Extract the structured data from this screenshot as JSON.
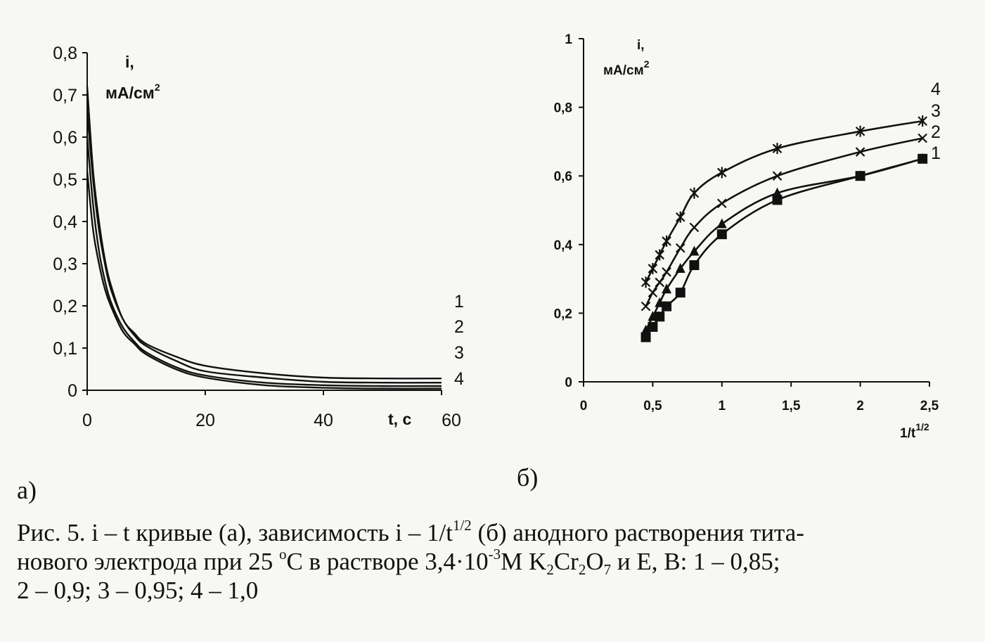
{
  "chart_data": [
    {
      "type": "line",
      "panel_label": "а)",
      "ylabel_line1": "i,",
      "ylabel_line2": "мА/см",
      "ylabel_sup": "2",
      "xlabel": "t, c",
      "xlim": [
        0,
        60
      ],
      "ylim": [
        0,
        0.8
      ],
      "x_ticks": [
        0,
        20,
        40,
        60
      ],
      "x_tick_labels": [
        "0",
        "20",
        "40",
        "60"
      ],
      "y_ticks": [
        0,
        0.1,
        0.2,
        0.3,
        0.4,
        0.5,
        0.6,
        0.7,
        0.8
      ],
      "y_tick_labels": [
        "0",
        "0,1",
        "0,2",
        "0,3",
        "0,4",
        "0,5",
        "0,6",
        "0,7",
        "0,8"
      ],
      "grid": false,
      "series": [
        {
          "name": "1",
          "x": [
            0,
            1,
            2,
            3,
            4,
            6,
            8,
            10,
            15,
            20,
            30,
            40,
            50,
            60
          ],
          "y": [
            0.52,
            0.38,
            0.3,
            0.24,
            0.2,
            0.14,
            0.11,
            0.085,
            0.05,
            0.03,
            0.012,
            0.006,
            0.004,
            0.004
          ]
        },
        {
          "name": "2",
          "x": [
            0,
            1,
            2,
            3,
            4,
            6,
            8,
            10,
            15,
            20,
            30,
            40,
            50,
            60
          ],
          "y": [
            0.6,
            0.44,
            0.33,
            0.26,
            0.21,
            0.15,
            0.115,
            0.09,
            0.055,
            0.035,
            0.018,
            0.012,
            0.01,
            0.01
          ]
        },
        {
          "name": "3",
          "x": [
            0,
            1,
            2,
            3,
            4,
            6,
            8,
            10,
            15,
            20,
            30,
            40,
            50,
            60
          ],
          "y": [
            0.66,
            0.5,
            0.38,
            0.3,
            0.24,
            0.17,
            0.13,
            0.105,
            0.07,
            0.045,
            0.03,
            0.02,
            0.018,
            0.018
          ]
        },
        {
          "name": "4",
          "x": [
            0,
            1,
            2,
            3,
            4,
            6,
            8,
            10,
            15,
            20,
            30,
            40,
            50,
            60
          ],
          "y": [
            0.72,
            0.52,
            0.4,
            0.31,
            0.25,
            0.17,
            0.135,
            0.11,
            0.08,
            0.058,
            0.04,
            0.03,
            0.028,
            0.028
          ]
        }
      ]
    },
    {
      "type": "line",
      "panel_label": "б)",
      "ylabel_line1": "i,",
      "ylabel_line2": "мА/см",
      "ylabel_sup": "2",
      "xlabel": "1/t",
      "xlabel_sup": "1/2",
      "xlim": [
        0,
        2.5
      ],
      "ylim": [
        0,
        1
      ],
      "x_ticks": [
        0,
        0.5,
        1,
        1.5,
        2,
        2.5
      ],
      "x_tick_labels": [
        "0",
        "0,5",
        "1",
        "1,5",
        "2",
        "2,5"
      ],
      "y_ticks": [
        0,
        0.2,
        0.4,
        0.6,
        0.8,
        1
      ],
      "y_tick_labels": [
        "0",
        "0,2",
        "0,4",
        "0,6",
        "0,8",
        "1"
      ],
      "grid": false,
      "series": [
        {
          "name": "1",
          "marker": "square",
          "x": [
            0.45,
            0.5,
            0.55,
            0.6,
            0.7,
            0.8,
            1.0,
            1.4,
            2.0,
            2.45
          ],
          "y": [
            0.13,
            0.16,
            0.19,
            0.22,
            0.26,
            0.34,
            0.43,
            0.53,
            0.6,
            0.65
          ]
        },
        {
          "name": "2",
          "marker": "triangle",
          "x": [
            0.45,
            0.5,
            0.55,
            0.6,
            0.7,
            0.8,
            1.0,
            1.4,
            2.0,
            2.45
          ],
          "y": [
            0.15,
            0.19,
            0.23,
            0.27,
            0.33,
            0.38,
            0.46,
            0.55,
            0.6,
            0.65
          ]
        },
        {
          "name": "3",
          "marker": "x",
          "x": [
            0.45,
            0.5,
            0.55,
            0.6,
            0.7,
            0.8,
            1.0,
            1.4,
            2.0,
            2.45
          ],
          "y": [
            0.22,
            0.26,
            0.29,
            0.32,
            0.39,
            0.45,
            0.52,
            0.6,
            0.67,
            0.71
          ]
        },
        {
          "name": "4",
          "marker": "star",
          "x": [
            0.45,
            0.5,
            0.55,
            0.6,
            0.7,
            0.8,
            1.0,
            1.4,
            2.0,
            2.45
          ],
          "y": [
            0.29,
            0.33,
            0.37,
            0.41,
            0.48,
            0.55,
            0.61,
            0.68,
            0.73,
            0.76
          ]
        }
      ]
    }
  ],
  "caption": {
    "line1_a": "Рис. 5. i – t кривые (а), зависимость i – 1/t",
    "line1_sup": "1/2",
    "line1_b": " (б) анодного растворения тита-",
    "line2_a": "нового электрода при 25 ",
    "line2_deg": "o",
    "line2_b": "С в растворе 3,4·10",
    "line2_exp": "-3",
    "line2_c": "М K",
    "line2_sub1": "2",
    "line2_d": "Cr",
    "line2_sub2": "2",
    "line2_e": "O",
    "line2_sub3": "7",
    "line2_f": " и Е, В: 1 – 0,85;",
    "line3": "2 – 0,9; 3 – 0,95; 4 – 1,0"
  }
}
